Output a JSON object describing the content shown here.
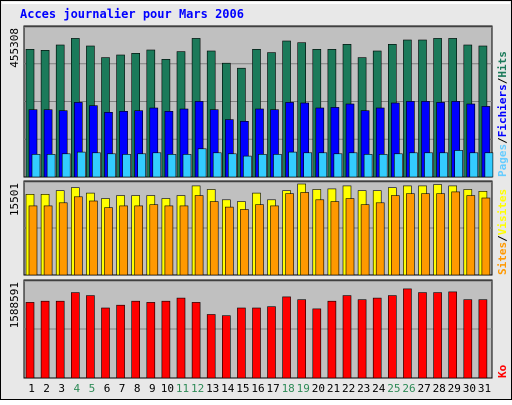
{
  "title": "Acces journalier pour Mars 2006",
  "colors": {
    "frame_bg": "#e8e8e8",
    "panel_bg": "#c0c0c0",
    "title": "#0000ff",
    "hits": "#1b7a5a",
    "pages": "#66ccff",
    "files": "#0000ff",
    "sites": "#ff9900",
    "visits": "#ffff00",
    "kb": "#ff0000",
    "weekend_day": "#2e8b57",
    "weekday": "#000000"
  },
  "chart_data": [
    {
      "type": "bar",
      "panel": "hits-files-pages",
      "ymax_label": "455308",
      "ylim": [
        0,
        455308
      ],
      "side_legend": [
        "Pages",
        "/",
        "Fichiers",
        "/",
        "Hits"
      ],
      "categories": [
        "1",
        "2",
        "3",
        "4",
        "5",
        "6",
        "7",
        "8",
        "9",
        "10",
        "11",
        "12",
        "13",
        "14",
        "15",
        "16",
        "17",
        "18",
        "19",
        "20",
        "21",
        "22",
        "23",
        "24",
        "25",
        "26",
        "27",
        "28",
        "29",
        "30",
        "31"
      ],
      "series": [
        {
          "name": "Hits",
          "color": "#1b7a5a",
          "values": [
            385000,
            382000,
            398000,
            418000,
            395000,
            360000,
            368000,
            373000,
            383000,
            355000,
            378000,
            418000,
            380000,
            343000,
            328000,
            385000,
            375000,
            410000,
            405000,
            385000,
            385000,
            400000,
            360000,
            380000,
            400000,
            413000,
            413000,
            418000,
            418000,
            398000,
            395000
          ]
        },
        {
          "name": "Fichiers",
          "color": "#0000ff",
          "values": [
            203000,
            203000,
            200000,
            225000,
            215000,
            195000,
            198000,
            200000,
            208000,
            198000,
            205000,
            228000,
            203000,
            173000,
            168000,
            205000,
            203000,
            225000,
            223000,
            208000,
            210000,
            220000,
            200000,
            208000,
            223000,
            228000,
            228000,
            225000,
            228000,
            220000,
            213000
          ]
        },
        {
          "name": "Pages",
          "color": "#33ccff",
          "values": [
            68000,
            68000,
            70000,
            75000,
            73000,
            70000,
            68000,
            70000,
            73000,
            68000,
            68000,
            85000,
            73000,
            70000,
            63000,
            68000,
            68000,
            75000,
            73000,
            73000,
            70000,
            73000,
            68000,
            68000,
            70000,
            73000,
            73000,
            73000,
            80000,
            73000,
            73000
          ]
        }
      ]
    },
    {
      "type": "bar",
      "panel": "visits-sites",
      "ymax_label": "15501",
      "ylim": [
        0,
        15501
      ],
      "side_legend": [
        "Sites",
        "/",
        "Visites"
      ],
      "categories": [
        "1",
        "2",
        "3",
        "4",
        "5",
        "6",
        "7",
        "8",
        "9",
        "10",
        "11",
        "12",
        "13",
        "14",
        "15",
        "16",
        "17",
        "18",
        "19",
        "20",
        "21",
        "22",
        "23",
        "24",
        "25",
        "26",
        "27",
        "28",
        "29",
        "30",
        "31"
      ],
      "series": [
        {
          "name": "Visites",
          "color": "#ffff00",
          "values": [
            13300,
            13300,
            13900,
            14400,
            13500,
            12600,
            13100,
            13100,
            13100,
            12600,
            13100,
            14700,
            14100,
            12400,
            12100,
            13500,
            12400,
            13900,
            15000,
            14100,
            14200,
            14700,
            13900,
            13900,
            14400,
            14700,
            14700,
            14900,
            14700,
            14100,
            13800
          ]
        },
        {
          "name": "Sites",
          "color": "#ff9900",
          "values": [
            11400,
            11400,
            11900,
            12900,
            12200,
            11100,
            11400,
            11400,
            11600,
            11400,
            11400,
            13100,
            12100,
            11200,
            10800,
            11600,
            11400,
            13400,
            13600,
            12400,
            12100,
            12600,
            11600,
            11900,
            13100,
            13400,
            13400,
            13400,
            13700,
            13100,
            12700
          ]
        }
      ]
    },
    {
      "type": "bar",
      "panel": "kbytes",
      "ymax_label": "1588591",
      "ylim": [
        0,
        1588591
      ],
      "side_legend": [
        "Ko"
      ],
      "categories": [
        "1",
        "2",
        "3",
        "4",
        "5",
        "6",
        "7",
        "8",
        "9",
        "10",
        "11",
        "12",
        "13",
        "14",
        "15",
        "16",
        "17",
        "18",
        "19",
        "20",
        "21",
        "22",
        "23",
        "24",
        "25",
        "26",
        "27",
        "28",
        "29",
        "30",
        "31"
      ],
      "series": [
        {
          "name": "Ko",
          "color": "#ff0000",
          "values": [
            1225000,
            1245000,
            1245000,
            1385000,
            1335000,
            1135000,
            1180000,
            1245000,
            1225000,
            1245000,
            1295000,
            1225000,
            1030000,
            1010000,
            1135000,
            1135000,
            1155000,
            1315000,
            1270000,
            1120000,
            1245000,
            1335000,
            1270000,
            1295000,
            1335000,
            1445000,
            1385000,
            1385000,
            1395000,
            1270000,
            1270000
          ]
        }
      ]
    }
  ],
  "x_labels": [
    {
      "text": "1",
      "weekend": false
    },
    {
      "text": "2",
      "weekend": false
    },
    {
      "text": "3",
      "weekend": false
    },
    {
      "text": "4",
      "weekend": true
    },
    {
      "text": "5",
      "weekend": true
    },
    {
      "text": "6",
      "weekend": false
    },
    {
      "text": "7",
      "weekend": false
    },
    {
      "text": "8",
      "weekend": false
    },
    {
      "text": "9",
      "weekend": false
    },
    {
      "text": "10",
      "weekend": false
    },
    {
      "text": "11",
      "weekend": true
    },
    {
      "text": "12",
      "weekend": true
    },
    {
      "text": "13",
      "weekend": false
    },
    {
      "text": "14",
      "weekend": false
    },
    {
      "text": "15",
      "weekend": false
    },
    {
      "text": "16",
      "weekend": false
    },
    {
      "text": "17",
      "weekend": false
    },
    {
      "text": "18",
      "weekend": true
    },
    {
      "text": "19",
      "weekend": true
    },
    {
      "text": "20",
      "weekend": false
    },
    {
      "text": "21",
      "weekend": false
    },
    {
      "text": "22",
      "weekend": false
    },
    {
      "text": "23",
      "weekend": false
    },
    {
      "text": "24",
      "weekend": false
    },
    {
      "text": "25",
      "weekend": true
    },
    {
      "text": "26",
      "weekend": true
    },
    {
      "text": "27",
      "weekend": false
    },
    {
      "text": "28",
      "weekend": false
    },
    {
      "text": "29",
      "weekend": false
    },
    {
      "text": "30",
      "weekend": false
    },
    {
      "text": "31",
      "weekend": false
    }
  ]
}
